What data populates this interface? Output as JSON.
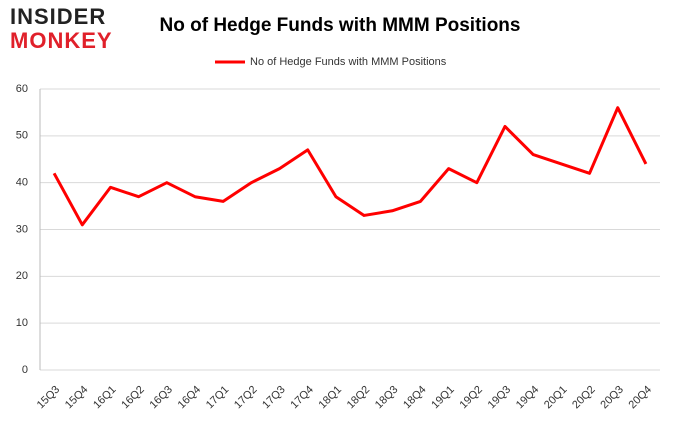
{
  "logo": {
    "line1": "INSIDER",
    "line2": "MONKEY"
  },
  "chart_data": {
    "type": "line",
    "title": "No of Hedge Funds with MMM Positions",
    "categories": [
      "15Q3",
      "15Q4",
      "16Q1",
      "16Q2",
      "16Q3",
      "16Q4",
      "17Q1",
      "17Q2",
      "17Q3",
      "17Q4",
      "18Q1",
      "18Q2",
      "18Q3",
      "18Q4",
      "19Q1",
      "19Q2",
      "19Q3",
      "19Q4",
      "20Q1",
      "20Q2",
      "20Q3",
      "20Q4"
    ],
    "series": [
      {
        "name": "No of Hedge Funds with MMM Positions",
        "color": "#ff0000",
        "values": [
          42,
          31,
          39,
          37,
          40,
          37,
          36,
          40,
          43,
          47,
          37,
          33,
          34,
          36,
          43,
          40,
          52,
          46,
          44,
          42,
          56,
          44
        ]
      }
    ],
    "ylim": [
      0,
      60
    ],
    "yticks": [
      0,
      10,
      20,
      30,
      40,
      50,
      60
    ],
    "grid": true,
    "legend": "top"
  }
}
